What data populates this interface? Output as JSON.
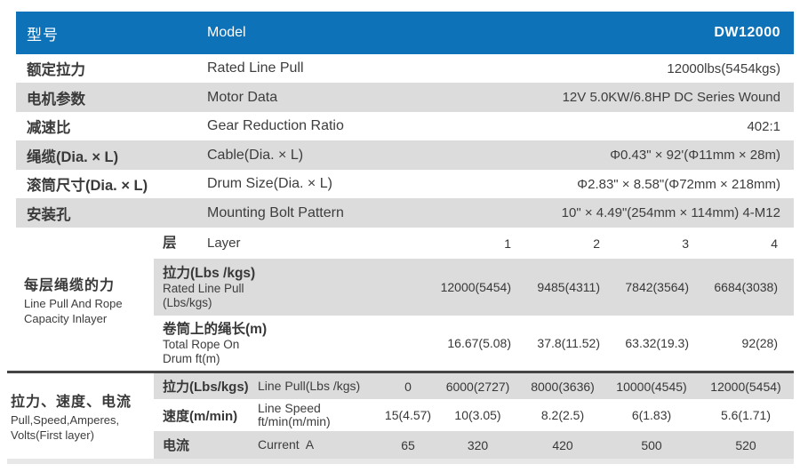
{
  "colors": {
    "header_bg": "#0e72b8",
    "header_text": "#ffffff",
    "row_alt_bg": "#dcdcdc",
    "divider": "#454545",
    "body_text": "#3a3a3a"
  },
  "header": {
    "cn": "型号",
    "en": "Model",
    "value": "DW12000"
  },
  "spec_rows": [
    {
      "cn": "额定拉力",
      "en": "Rated Line Pull",
      "value": "12000lbs(5454kgs)"
    },
    {
      "cn": "电机参数",
      "en": "Motor Data",
      "value": "12V 5.0KW/6.8HP DC Series Wound"
    },
    {
      "cn": "减速比",
      "en": "Gear Reduction Ratio",
      "value": "402:1"
    },
    {
      "cn": "绳缆(Dia. × L)",
      "en": "Cable(Dia. × L)",
      "value": "Φ0.43\" × 92'(Φ11mm × 28m)"
    },
    {
      "cn": "滚筒尺寸(Dia. × L)",
      "en": "Drum Size(Dia. × L)",
      "value": "Φ2.83\" × 8.58\"(Φ72mm × 218mm)"
    },
    {
      "cn": "安装孔",
      "en": "Mounting Bolt Pattern",
      "value": "10\" × 4.49\"(254mm × 114mm) 4-M12"
    }
  ],
  "layer_section": {
    "label_cn": "每层绳缆的力",
    "label_en1": "Line Pull And Rope",
    "label_en2": "Capacity Inlayer",
    "head": {
      "cn": "层",
      "en": "Layer",
      "cols": [
        "1",
        "2",
        "3",
        "4"
      ]
    },
    "pull": {
      "cn": "拉力(Lbs /kgs)",
      "en1": "Rated Line Pull",
      "en2": "(Lbs/kgs)",
      "values": [
        "12000(5454)",
        "9485(4311)",
        "7842(3564)",
        "6684(3038)"
      ]
    },
    "rope": {
      "cn": "卷筒上的绳长(m)",
      "en1": "Total Rope On",
      "en2": "Drum ft(m)",
      "values": [
        "16.67(5.08)",
        "37.8(11.52)",
        "63.32(19.3)",
        "92(28)"
      ]
    }
  },
  "perf_section": {
    "label_cn": "拉力、速度、电流",
    "label_en1": "Pull,Speed,Amperes,",
    "label_en2": "Volts(First layer)",
    "pull": {
      "cn": "拉力(Lbs/kgs)",
      "en": "Line Pull(Lbs /kgs)",
      "values": [
        "0",
        "6000(2727)",
        "8000(3636)",
        "10000(4545)",
        "12000(5454)"
      ]
    },
    "speed": {
      "cn": "速度(m/min)",
      "en1": "Line Speed",
      "en2": "ft/min(m/min)",
      "values": [
        "15(4.57)",
        "10(3.05)",
        "8.2(2.5)",
        "6(1.83)",
        "5.6(1.71)"
      ]
    },
    "current": {
      "cn": "电流",
      "en": "Current  A",
      "values": [
        "65",
        "320",
        "420",
        "500",
        "520"
      ]
    }
  }
}
